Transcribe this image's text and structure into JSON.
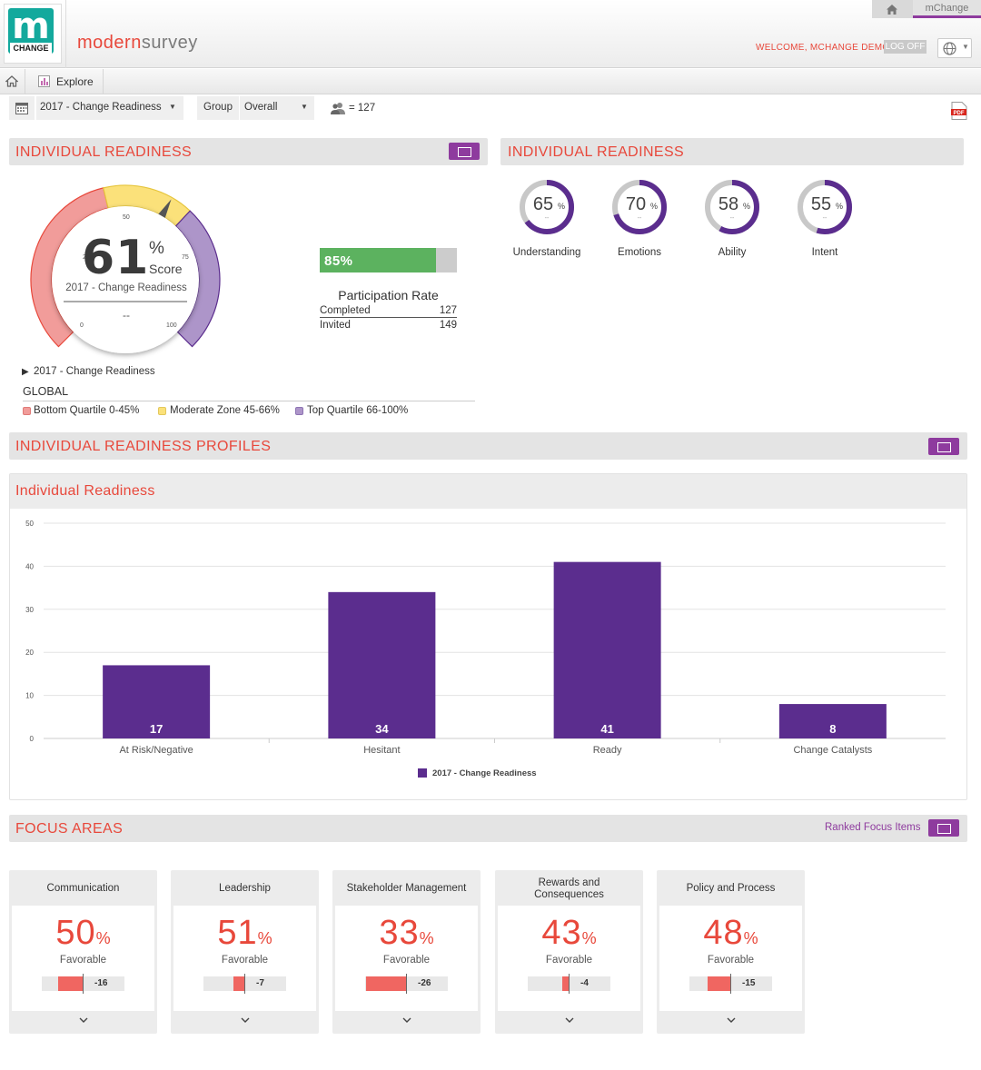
{
  "header": {
    "brand_left": "modern",
    "brand_right": "survey",
    "logo_letter": "m",
    "logo_sub": "CHANGE",
    "top_tab": "mChange",
    "welcome": "WELCOME, MCHANGE DEMO!",
    "logoff": "LOG OFF"
  },
  "nav": {
    "explore": "Explore"
  },
  "filters": {
    "survey": "2017 - Change Readiness",
    "group_label": "Group",
    "group_value": "Overall",
    "respondents": "= 127"
  },
  "individual_readiness": {
    "title": "INDIVIDUAL READINESS",
    "score": "61",
    "percent_sign": "%",
    "score_label": "Score",
    "survey": "2017 - Change Readiness",
    "compare": "--",
    "gauge_value": 61,
    "ticks": {
      "t0": "0",
      "t25": "25",
      "t50": "50",
      "t75": "75",
      "t100": "100"
    },
    "legend_year": "2017 - Change Readiness",
    "global": "GLOBAL",
    "legend": [
      {
        "label": "Bottom Quartile 0-45%",
        "color": "#f19c9a"
      },
      {
        "label": "Moderate Zone 45-66%",
        "color": "#fbe17a"
      },
      {
        "label": "Top Quartile 66-100%",
        "color": "#ad95c9"
      }
    ]
  },
  "participation": {
    "pct": "85%",
    "fraction": 0.85,
    "title": "Participation Rate",
    "completed_label": "Completed",
    "completed": "127",
    "invited_label": "Invited",
    "invited": "149"
  },
  "readiness_rings": {
    "title": "INDIVIDUAL READINESS",
    "items": [
      {
        "value": 65,
        "pct": "65",
        "sign": "%",
        "sub": "--",
        "label": "Understanding"
      },
      {
        "value": 70,
        "pct": "70",
        "sign": "%",
        "sub": "--",
        "label": "Emotions"
      },
      {
        "value": 58,
        "pct": "58",
        "sign": "%",
        "sub": "--",
        "label": "Ability"
      },
      {
        "value": 55,
        "pct": "55",
        "sign": "%",
        "sub": "--",
        "label": "Intent"
      }
    ]
  },
  "profiles": {
    "title": "INDIVIDUAL READINESS PROFILES"
  },
  "chart_data": {
    "type": "bar",
    "title": "Individual Readiness",
    "categories": [
      "At Risk/Negative",
      "Hesitant",
      "Ready",
      "Change Catalysts"
    ],
    "series": [
      {
        "name": "2017 - Change Readiness",
        "values": [
          17,
          34,
          41,
          8
        ],
        "color": "#5b2d8e"
      }
    ],
    "ylim": [
      0,
      50
    ],
    "yticks": [
      "0",
      "10",
      "20",
      "30",
      "40",
      "50"
    ],
    "grid": true,
    "legend": "bottom-center"
  },
  "focus": {
    "title": "FOCUS AREAS",
    "ranked_link": "Ranked Focus Items",
    "cards": [
      {
        "title": "Communication",
        "pct": "50",
        "sign": "%",
        "fav": "Favorable",
        "delta": "-16",
        "delta_value": -16
      },
      {
        "title": "Leadership",
        "pct": "51",
        "sign": "%",
        "fav": "Favorable",
        "delta": "-7",
        "delta_value": -7
      },
      {
        "title": "Stakeholder Management",
        "pct": "33",
        "sign": "%",
        "fav": "Favorable",
        "delta": "-26",
        "delta_value": -26
      },
      {
        "title": "Rewards and Consequences",
        "pct": "43",
        "sign": "%",
        "fav": "Favorable",
        "delta": "-4",
        "delta_value": -4
      },
      {
        "title": "Policy and Process",
        "pct": "48",
        "sign": "%",
        "fav": "Favorable",
        "delta": "-15",
        "delta_value": -15
      }
    ]
  },
  "icons": [
    "home-icon",
    "explore-chart-icon",
    "calendar-icon",
    "people-icon",
    "pdf-icon",
    "globe-icon",
    "expand-icon",
    "chevron-down-icon"
  ]
}
